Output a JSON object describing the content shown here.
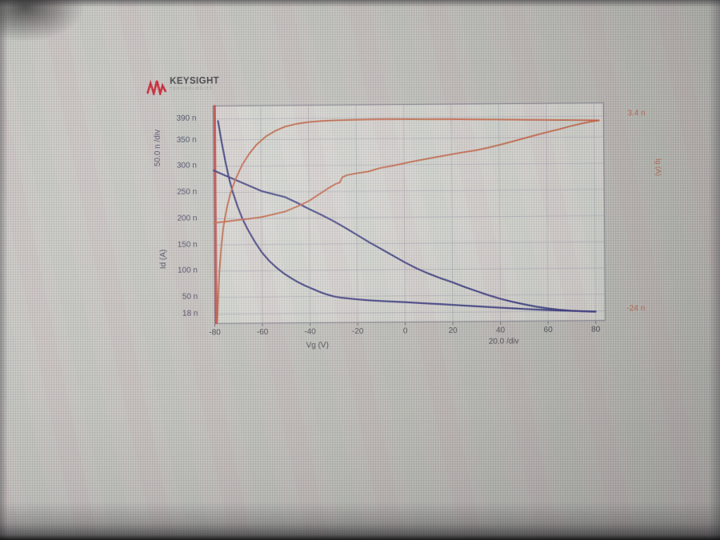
{
  "app": {
    "brand": "KEYSIGHT",
    "brand_sub": "TECHNOLOGIES"
  },
  "colors": {
    "id_trace": "#2b2b77",
    "ig_trace": "#c35a38",
    "ig_spike": "#c13a3a",
    "id_label": "#3a3a56",
    "ig_label": "#b05a40"
  },
  "chart_data": {
    "type": "line",
    "title": "",
    "x_axis": {
      "label": "Vg (V)",
      "per_div": "20.0 /div",
      "range": [
        -80,
        84
      ],
      "ticks": [
        {
          "label": "-80",
          "value": -80
        },
        {
          "label": "-60",
          "value": -60
        },
        {
          "label": "-40",
          "value": -40
        },
        {
          "label": "-20",
          "value": -20
        },
        {
          "label": "0",
          "value": 0
        },
        {
          "label": "20",
          "value": 20
        },
        {
          "label": "40",
          "value": 40
        },
        {
          "label": "60",
          "value": 60
        },
        {
          "label": "80",
          "value": 80
        }
      ]
    },
    "y1_axis": {
      "label": "Id (A)",
      "per_div": "50.0 n /div",
      "unit": "nA",
      "range_units_n": [
        0,
        415
      ],
      "ticks": [
        {
          "label": "390 n",
          "value": 390
        },
        {
          "label": "350 n",
          "value": 350
        },
        {
          "label": "300 n",
          "value": 300
        },
        {
          "label": "250 n",
          "value": 250
        },
        {
          "label": "200 n",
          "value": 200
        },
        {
          "label": "150 n",
          "value": 150
        },
        {
          "label": "100 n",
          "value": 100
        },
        {
          "label": "50 n",
          "value": 50
        },
        {
          "label": "18 n",
          "value": 18
        }
      ]
    },
    "y2_axis": {
      "label": "Ig (A)",
      "unit": "nA",
      "max_label": "3.4 n",
      "min_label": "-24 n",
      "range_units_n": [
        -25.7,
        5.9
      ]
    },
    "series": [
      {
        "name": "ig-spike-at-start",
        "axis": "y2",
        "color": "#c13a3a",
        "width": 3.2,
        "points": [
          [
            -79.4,
            5.85
          ],
          [
            -79.4,
            -25.6
          ]
        ]
      },
      {
        "name": "id-sweep-1",
        "axis": "y1",
        "color": "#2b2b77",
        "width": 2.2,
        "points": [
          [
            -78,
            386
          ],
          [
            -76.5,
            345
          ],
          [
            -75,
            308
          ],
          [
            -73.5,
            276
          ],
          [
            -72,
            250
          ],
          [
            -70,
            222
          ],
          [
            -68,
            199
          ],
          [
            -66,
            180
          ],
          [
            -63,
            156
          ],
          [
            -60,
            135
          ],
          [
            -57,
            119
          ],
          [
            -54,
            106
          ],
          [
            -51,
            95
          ],
          [
            -48,
            86
          ],
          [
            -45,
            78
          ],
          [
            -42,
            71
          ],
          [
            -39,
            65
          ],
          [
            -36,
            59
          ],
          [
            -33,
            54
          ],
          [
            -30,
            50
          ],
          [
            -27,
            47.5
          ],
          [
            -24,
            46
          ],
          [
            -20,
            44
          ],
          [
            -15,
            42
          ],
          [
            -10,
            40.5
          ],
          [
            -5,
            39
          ],
          [
            0,
            38
          ],
          [
            5,
            36.5
          ],
          [
            10,
            35
          ],
          [
            15,
            33.5
          ],
          [
            20,
            32
          ],
          [
            25,
            30.5
          ],
          [
            30,
            29
          ],
          [
            35,
            27.5
          ],
          [
            40,
            26
          ],
          [
            45,
            24.5
          ],
          [
            50,
            23.2
          ],
          [
            55,
            22
          ],
          [
            60,
            20.8
          ],
          [
            65,
            19.7
          ],
          [
            70,
            18.8
          ],
          [
            75,
            18
          ],
          [
            80,
            17.3
          ]
        ]
      },
      {
        "name": "id-sweep-2",
        "axis": "y1",
        "color": "#2b2b77",
        "width": 2.2,
        "points": [
          [
            -80,
            292
          ],
          [
            -75,
            282
          ],
          [
            -70,
            272
          ],
          [
            -65,
            262
          ],
          [
            -60,
            252
          ],
          [
            -55,
            246
          ],
          [
            -50,
            240
          ],
          [
            -45,
            229
          ],
          [
            -40,
            217
          ],
          [
            -35,
            206
          ],
          [
            -30,
            194
          ],
          [
            -25,
            181
          ],
          [
            -20,
            167
          ],
          [
            -15,
            153
          ],
          [
            -10,
            140
          ],
          [
            -5,
            127
          ],
          [
            0,
            114
          ],
          [
            5,
            102
          ],
          [
            10,
            92
          ],
          [
            15,
            83
          ],
          [
            20,
            75
          ],
          [
            25,
            66
          ],
          [
            30,
            58
          ],
          [
            35,
            50
          ],
          [
            40,
            43
          ],
          [
            45,
            37
          ],
          [
            50,
            32
          ],
          [
            55,
            27.5
          ],
          [
            60,
            24
          ],
          [
            65,
            21
          ],
          [
            70,
            19
          ],
          [
            75,
            17.7
          ],
          [
            80,
            17
          ]
        ]
      },
      {
        "name": "ig-sweep-1",
        "axis": "y2",
        "color": "#c35a38",
        "width": 2,
        "points": [
          [
            -79,
            -25.5
          ],
          [
            -78.5,
            -22
          ],
          [
            -78,
            -18.5
          ],
          [
            -77,
            -14.5
          ],
          [
            -76,
            -11.5
          ],
          [
            -74.5,
            -8.8
          ],
          [
            -73,
            -6.8
          ],
          [
            -71,
            -4.9
          ],
          [
            -68,
            -2.7
          ],
          [
            -65,
            -1.1
          ],
          [
            -62,
            0.2
          ],
          [
            -58,
            1.4
          ],
          [
            -54,
            2.2
          ],
          [
            -50,
            2.8
          ],
          [
            -45,
            3.2
          ],
          [
            -40,
            3.45
          ],
          [
            -34,
            3.6
          ],
          [
            -28,
            3.68
          ],
          [
            -20,
            3.74
          ],
          [
            -10,
            3.77
          ],
          [
            0,
            3.76
          ],
          [
            10,
            3.73
          ],
          [
            20,
            3.7
          ],
          [
            30,
            3.65
          ],
          [
            40,
            3.6
          ],
          [
            50,
            3.55
          ],
          [
            60,
            3.5
          ],
          [
            70,
            3.45
          ],
          [
            78,
            3.4
          ],
          [
            82,
            3.38
          ]
        ]
      },
      {
        "name": "ig-sweep-2",
        "axis": "y2",
        "color": "#c35a38",
        "width": 2,
        "points": [
          [
            -80,
            -11.1
          ],
          [
            -75,
            -10.9
          ],
          [
            -70,
            -10.7
          ],
          [
            -65,
            -10.5
          ],
          [
            -60,
            -10.3
          ],
          [
            -55,
            -9.9
          ],
          [
            -50,
            -9.5
          ],
          [
            -45,
            -8.8
          ],
          [
            -40,
            -8.0
          ],
          [
            -36,
            -7.1
          ],
          [
            -32,
            -6.2
          ],
          [
            -29,
            -5.6
          ],
          [
            -27,
            -5.35
          ],
          [
            -26,
            -4.6
          ],
          [
            -24,
            -4.3
          ],
          [
            -20,
            -4.05
          ],
          [
            -15,
            -3.8
          ],
          [
            -10,
            -3.3
          ],
          [
            -5,
            -3.0
          ],
          [
            0,
            -2.65
          ],
          [
            5,
            -2.3
          ],
          [
            10,
            -2.0
          ],
          [
            15,
            -1.7
          ],
          [
            20,
            -1.4
          ],
          [
            25,
            -1.1
          ],
          [
            30,
            -0.85
          ],
          [
            35,
            -0.5
          ],
          [
            40,
            -0.1
          ],
          [
            45,
            0.35
          ],
          [
            50,
            0.8
          ],
          [
            55,
            1.25
          ],
          [
            60,
            1.7
          ],
          [
            65,
            2.1
          ],
          [
            70,
            2.55
          ],
          [
            75,
            2.95
          ],
          [
            79,
            3.2
          ],
          [
            82,
            3.35
          ]
        ]
      }
    ]
  }
}
